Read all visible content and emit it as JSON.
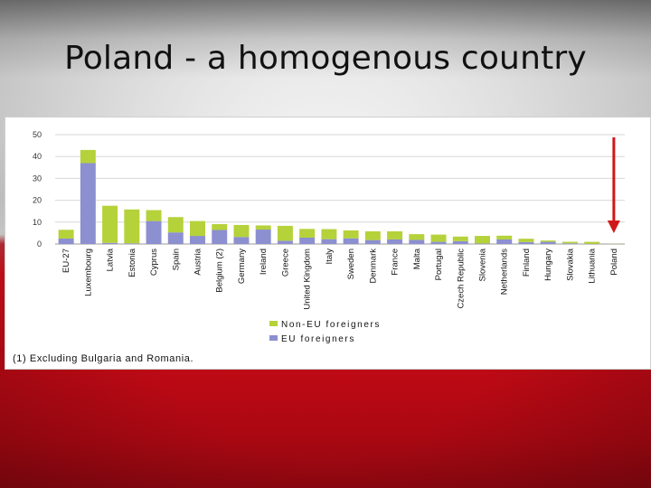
{
  "slide": {
    "title": "Poland - a homogenous country"
  },
  "chart_data": {
    "type": "bar",
    "stacked": true,
    "categories": [
      "EU-27",
      "Luxembourg",
      "Latvia",
      "Estonia",
      "Cyprus",
      "Spain",
      "Austria",
      "Belgium (2)",
      "Germany",
      "Ireland",
      "Greece",
      "United Kingdom",
      "Italy",
      "Sweden",
      "Denmark",
      "France",
      "Malta",
      "Portugal",
      "Czech Republic",
      "Slovenia",
      "Netherlands",
      "Finland",
      "Hungary",
      "Slovakia",
      "Lithuania",
      "Poland"
    ],
    "series": [
      {
        "name": "EU foreigners",
        "color": "#8c8fd0",
        "values": [
          2.5,
          37,
          0.5,
          0.3,
          10.5,
          5.3,
          3.7,
          6.4,
          3.2,
          6.6,
          1.5,
          2.9,
          2.2,
          2.6,
          1.8,
          2.1,
          1.9,
          1.0,
          1.3,
          0.2,
          2.1,
          0.9,
          1.0,
          0.3,
          0.1,
          0.1
        ]
      },
      {
        "name": "Non-EU foreigners",
        "color": "#b5d23a",
        "values": [
          4.0,
          6.0,
          17.0,
          15.5,
          5.0,
          7.0,
          6.8,
          2.7,
          5.5,
          1.9,
          6.8,
          4.0,
          4.6,
          3.6,
          4.0,
          3.7,
          2.6,
          3.3,
          2.1,
          3.5,
          1.7,
          1.5,
          0.6,
          0.7,
          0.9,
          0.1
        ]
      }
    ],
    "yticks": [
      0,
      10,
      20,
      30,
      40,
      50
    ],
    "ylim": [
      0,
      50
    ],
    "grid": true,
    "legend": [
      "Non-EU foreigners",
      "EU foreigners"
    ],
    "legend_position": "bottom-center",
    "note": "(1) Excluding Bulgaria and Romania.",
    "highlight": {
      "category": "Poland",
      "marker": "red-down-arrow",
      "color": "#d01818"
    }
  }
}
